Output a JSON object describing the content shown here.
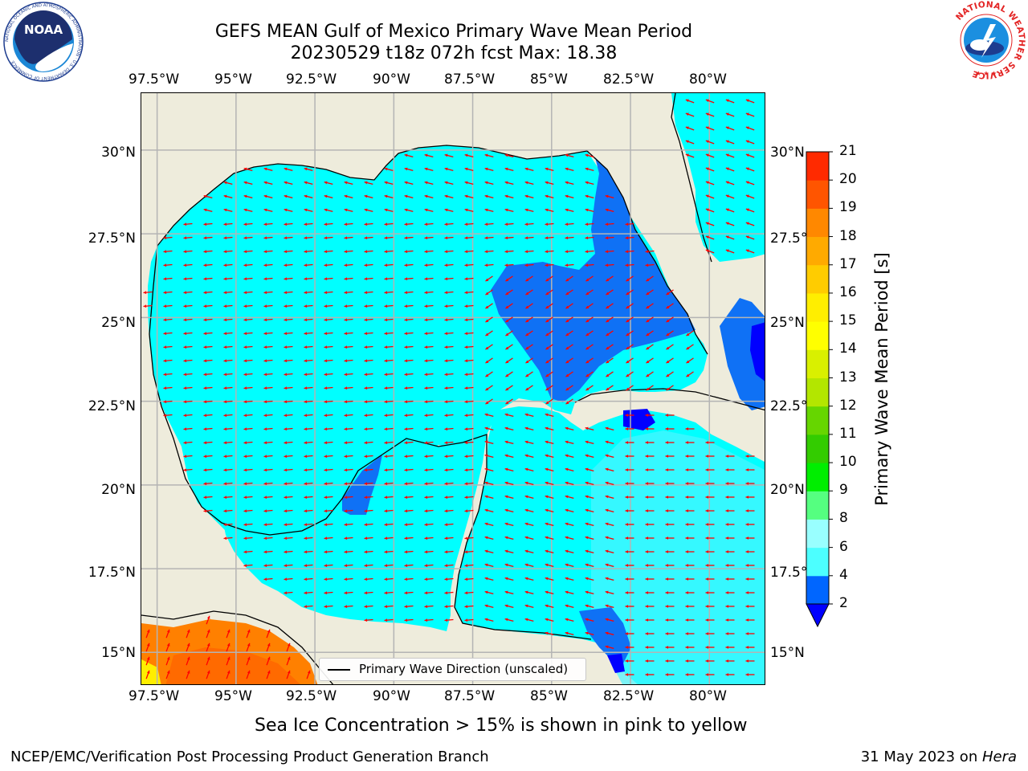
{
  "title": {
    "line1": "GEFS MEAN Gulf of Mexico Primary Wave Mean Period",
    "line2": "20230529 t18z 072h fcst   Max: 18.38"
  },
  "map": {
    "lon_labels": [
      "97.5°W",
      "95°W",
      "92.5°W",
      "90°W",
      "87.5°W",
      "85°W",
      "82.5°W",
      "80°W"
    ],
    "lat_labels_left": [
      "30°N",
      "27.5°N",
      "25°N",
      "22.5°N",
      "20°N",
      "17.5°N",
      "15°N"
    ],
    "lat_labels_right": [
      "30°N",
      "27.5°N",
      "25°N",
      "22.5°N",
      "20°N",
      "17.5°N",
      "15°N"
    ],
    "lon_range": [
      -98,
      -78.2
    ],
    "lat_range": [
      14,
      31.7
    ],
    "legend_label": "Primary Wave Direction (unscaled)",
    "colors": {
      "land": "#eeecdc",
      "period_2_4": "#0f71f5",
      "period_4_6": "#00ffff",
      "period_6_8": "#4cf5ff",
      "period_16_21": "#ff8000",
      "arrow": "#ff0000"
    }
  },
  "colorbar": {
    "label": "Primary Wave Mean Period [s]",
    "ticks": [
      "2",
      "4",
      "6",
      "8",
      "9",
      "10",
      "11",
      "12",
      "13",
      "14",
      "15",
      "16",
      "17",
      "18",
      "19",
      "20",
      "21"
    ],
    "colors": [
      "#0066ff",
      "#00f5ff",
      "#4cffff",
      "#99ffff",
      "#55ff80",
      "#00ee00",
      "#33cc00",
      "#66d600",
      "#b3e600",
      "#d9f000",
      "#ffff00",
      "#ffee00",
      "#ffcc00",
      "#ffaa00",
      "#ff8800",
      "#ff5500",
      "#ff2a00",
      "#ff0000"
    ],
    "under_color": "#0000ff"
  },
  "note": "Sea Ice Concentration > 15% is shown in pink to yellow",
  "footer": {
    "left": "NCEP/EMC/Verification Post Processing Product Generation Branch",
    "right_date": "31 May 2023 on ",
    "right_host": "Hera"
  },
  "logos": {
    "noaa_text": "NOAA",
    "noaa_ring": "NATIONAL OCEANIC AND ATMOSPHERIC ADMINISTRATION · U.S. DEPARTMENT OF COMMERCE",
    "nws_ring": "NATIONAL WEATHER SERVICE"
  }
}
